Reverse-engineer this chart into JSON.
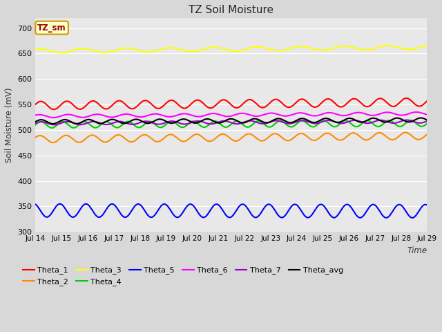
{
  "title": "TZ Soil Moisture",
  "ylabel": "Soil Moisture (mV)",
  "xlabel": "Time",
  "xlim_days": [
    14,
    29
  ],
  "ylim": [
    300,
    720
  ],
  "yticks": [
    300,
    350,
    400,
    450,
    500,
    550,
    600,
    650,
    700
  ],
  "xtick_labels": [
    "Jul 14",
    "Jul 15",
    "Jul 16",
    "Jul 17",
    "Jul 18",
    "Jul 19",
    "Jul 20",
    "Jul 21",
    "Jul 22",
    "Jul 23",
    "Jul 24",
    "Jul 25",
    "Jul 26",
    "Jul 27",
    "Jul 28",
    "Jul 29"
  ],
  "fig_bg": "#d8d8d8",
  "plot_bg": "#e8e8e8",
  "series_order": [
    "Theta_1",
    "Theta_2",
    "Theta_3",
    "Theta_4",
    "Theta_5",
    "Theta_6",
    "Theta_7",
    "Theta_avg"
  ],
  "series": {
    "Theta_1": {
      "color": "#ff0000",
      "base": 548,
      "trend": 0.45,
      "amp": 8,
      "freq": 1.0,
      "phase": 0.3
    },
    "Theta_2": {
      "color": "#ff8c00",
      "base": 482,
      "trend": 0.42,
      "amp": 7,
      "freq": 1.0,
      "phase": 0.5
    },
    "Theta_3": {
      "color": "#ffff00",
      "base": 655,
      "trend": 0.5,
      "amp": 4,
      "freq": 0.6,
      "phase": 1.0
    },
    "Theta_4": {
      "color": "#00cc00",
      "base": 510,
      "trend": 0.2,
      "amp": 6,
      "freq": 1.2,
      "phase": 0.0
    },
    "Theta_5": {
      "color": "#0000ff",
      "base": 342,
      "trend": -0.1,
      "amp": 13,
      "freq": 1.0,
      "phase": 2.0
    },
    "Theta_6": {
      "color": "#ff00ff",
      "base": 527,
      "trend": 0.35,
      "amp": 3,
      "freq": 0.9,
      "phase": 0.8
    },
    "Theta_7": {
      "color": "#9900cc",
      "base": 513,
      "trend": 0.25,
      "amp": 3,
      "freq": 1.0,
      "phase": 0.2
    },
    "Theta_avg": {
      "color": "#000000",
      "base": 516,
      "trend": 0.25,
      "amp": 4,
      "freq": 1.1,
      "phase": 0.1
    }
  },
  "legend_label": "TZ_sm",
  "legend_bg": "#ffffcc",
  "legend_border": "#cc9900",
  "legend_text_color": "#990000"
}
